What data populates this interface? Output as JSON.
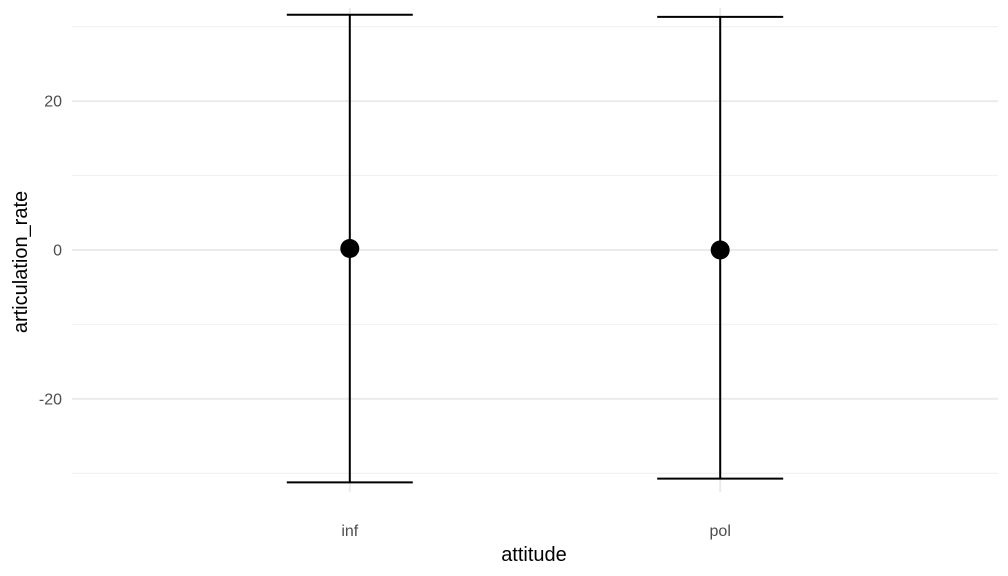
{
  "chart_data": {
    "type": "scatter",
    "title": "",
    "xlabel": "attitude",
    "ylabel": "articulation_rate",
    "categories": [
      "inf",
      "pol"
    ],
    "series": [
      {
        "points": [
          {
            "x": "inf",
            "y": 0.2,
            "ymin": -31.2,
            "ymax": 31.6
          },
          {
            "x": "pol",
            "y": 0.0,
            "ymin": -30.7,
            "ymax": 31.3
          }
        ]
      }
    ],
    "y_ticks": [
      -20,
      0,
      20
    ],
    "y_tick_labels": [
      "-20",
      "0",
      "20"
    ],
    "ylim": [
      -32.5,
      32.5
    ],
    "grid": true,
    "legend": "none",
    "colors": {
      "grid_major": "#ebebeb",
      "grid_minor": "#f2f2f2",
      "marks": "#000000",
      "tick_text": "#4d4d4d"
    }
  }
}
